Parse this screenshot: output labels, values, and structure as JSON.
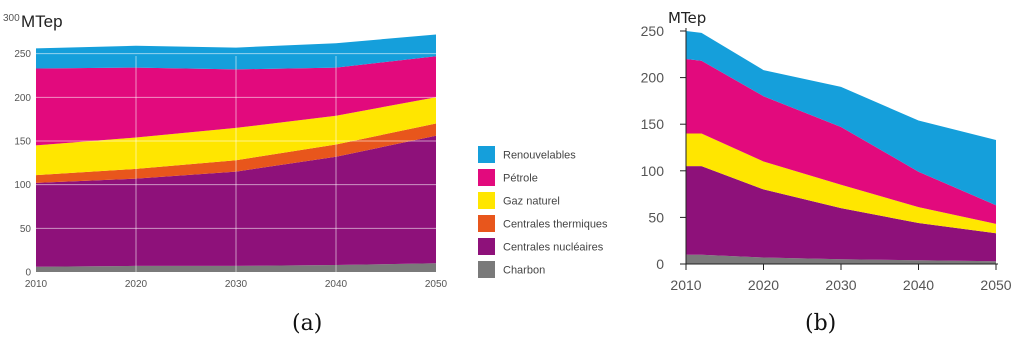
{
  "chart_data": [
    {
      "type": "area",
      "stacked": true,
      "panel_label": "(a)",
      "unit_label": "MTep",
      "ymax_label": "300",
      "x": [
        2010,
        2020,
        2030,
        2040,
        2050
      ],
      "x_ticks": [
        "2010",
        "2020",
        "2030",
        "2040",
        "2050"
      ],
      "y_ticks": [
        "0",
        "50",
        "100",
        "150",
        "200",
        "250"
      ],
      "ylim": [
        0,
        300
      ],
      "xlim": [
        2010,
        2050
      ],
      "grid": true,
      "legend_position": "right",
      "series": [
        {
          "name": "Charbon",
          "color": "#7a7a7a",
          "values": [
            6,
            7,
            7,
            8,
            10
          ]
        },
        {
          "name": "Centrales nucléaires",
          "color": "#8e117a",
          "values": [
            96,
            100,
            108,
            124,
            146
          ]
        },
        {
          "name": "Centrales thermiques",
          "color": "#e8561c",
          "values": [
            9,
            11,
            13,
            14,
            14
          ]
        },
        {
          "name": "Gaz naturel",
          "color": "#ffe600",
          "values": [
            34,
            36,
            37,
            33,
            30
          ]
        },
        {
          "name": "Pétrole",
          "color": "#e20a7d",
          "values": [
            88,
            80,
            67,
            55,
            47
          ]
        },
        {
          "name": "Renouvelables",
          "color": "#159fdb",
          "values": [
            23,
            25,
            25,
            28,
            25
          ]
        }
      ]
    },
    {
      "type": "area",
      "stacked": true,
      "panel_label": "(b)",
      "unit_label": "MTep",
      "x": [
        2010,
        2012,
        2020,
        2030,
        2040,
        2050
      ],
      "x_ticks": [
        "2010",
        "2020",
        "2030",
        "2040",
        "2050"
      ],
      "y_ticks": [
        "0",
        "50",
        "100",
        "150",
        "200",
        "250"
      ],
      "ylim": [
        0,
        250
      ],
      "xlim": [
        2010,
        2050
      ],
      "grid": false,
      "series": [
        {
          "color": "#7a7a7a",
          "values": [
            10,
            10,
            7,
            5,
            4,
            3
          ]
        },
        {
          "color": "#8e117a",
          "values": [
            95,
            95,
            73,
            55,
            40,
            30
          ]
        },
        {
          "color": "#ffe600",
          "values": [
            35,
            35,
            30,
            25,
            17,
            10
          ]
        },
        {
          "color": "#e20a7d",
          "values": [
            80,
            78,
            70,
            62,
            38,
            20
          ]
        },
        {
          "color": "#159fdb",
          "values": [
            30,
            30,
            28,
            43,
            55,
            70
          ]
        }
      ]
    }
  ]
}
